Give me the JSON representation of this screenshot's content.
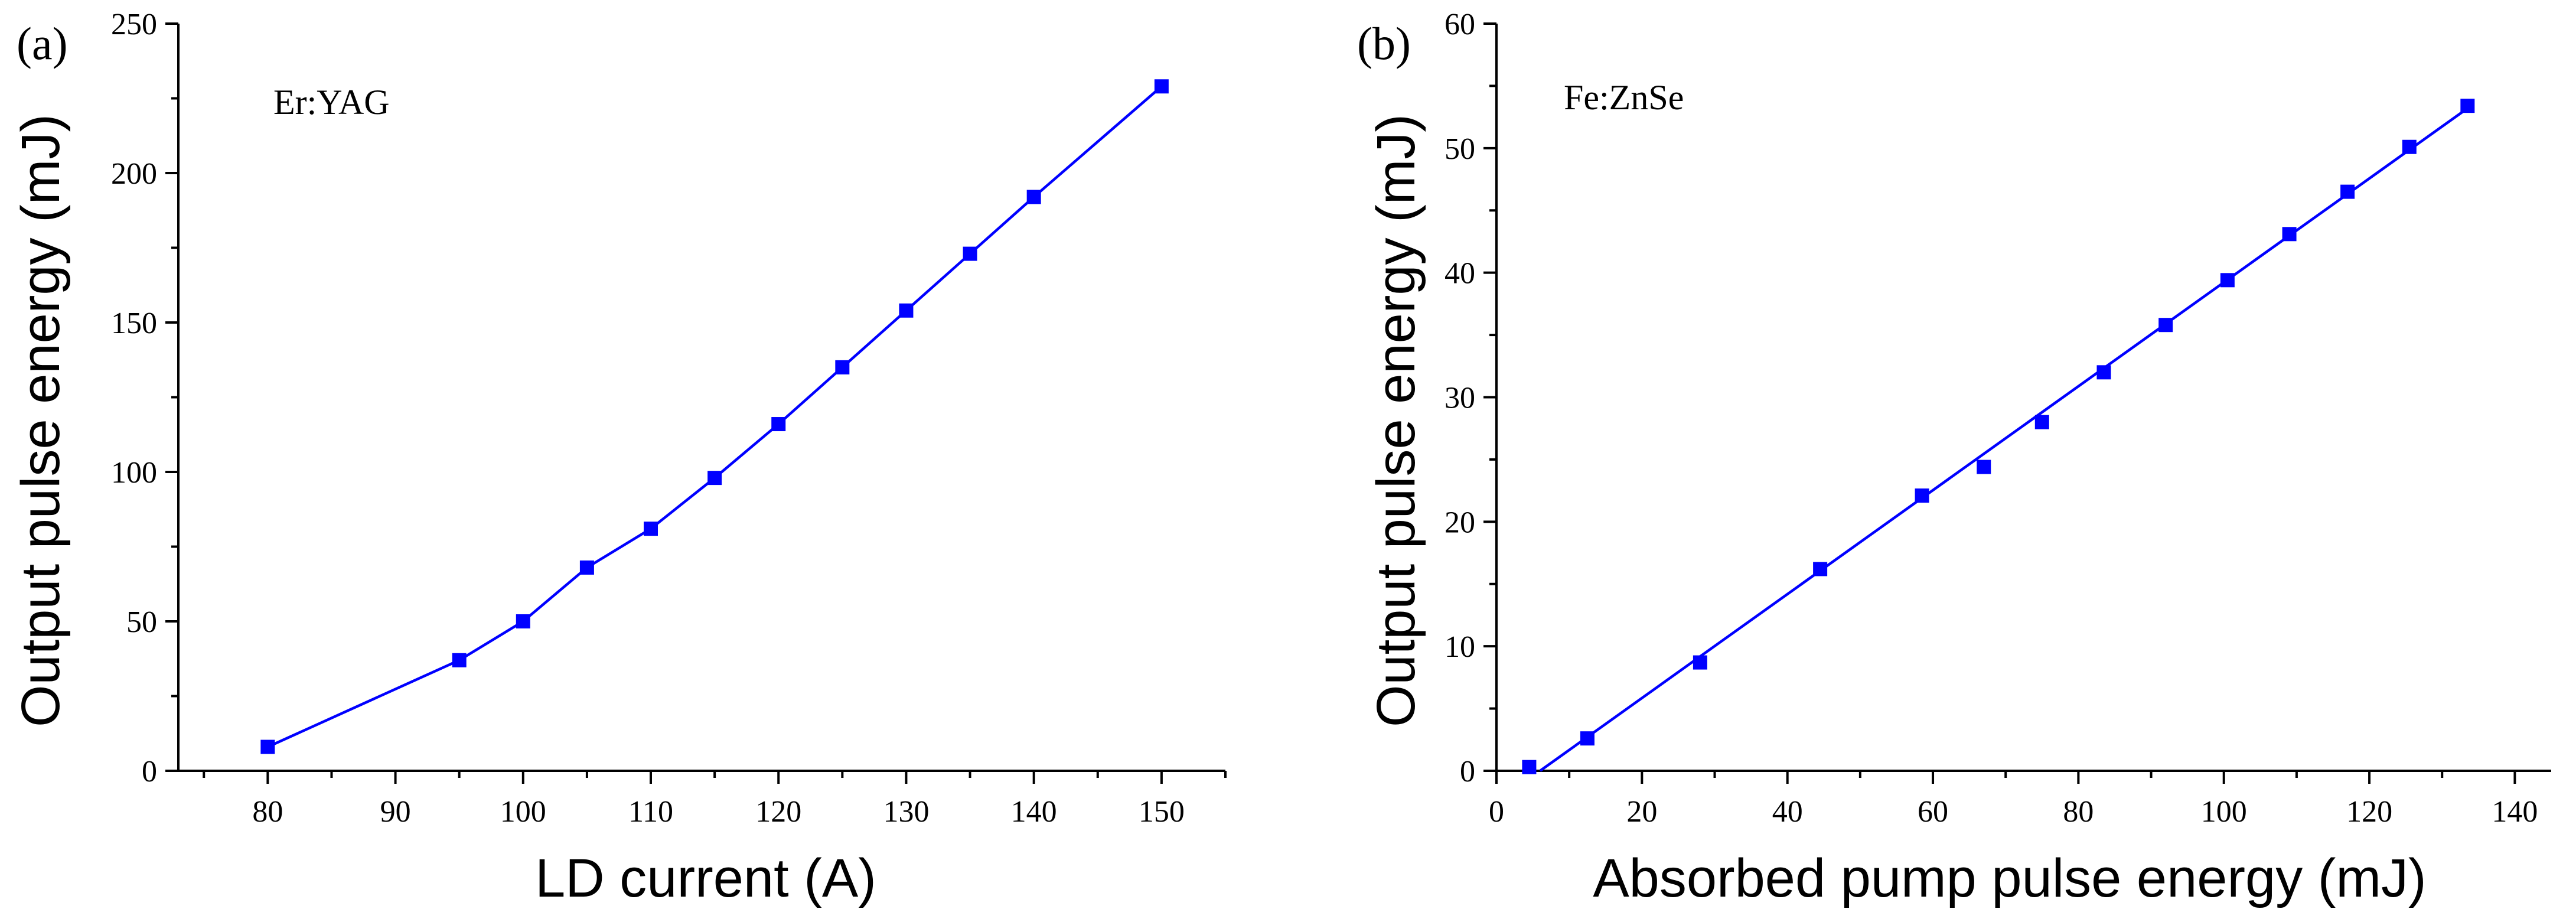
{
  "colors": {
    "series": "#0000ff",
    "axes": "#000000",
    "background": "#ffffff"
  },
  "chart_data": [
    {
      "type": "line",
      "panel_label": "(a)",
      "annotation": "Er:YAG",
      "title": "",
      "xlabel": "LD current (A)",
      "ylabel": "Output pulse energy (mJ)",
      "xlim": [
        73,
        155
      ],
      "ylim": [
        0,
        250
      ],
      "xticks": [
        80,
        90,
        100,
        110,
        120,
        130,
        140,
        150
      ],
      "yticks": [
        0,
        50,
        100,
        150,
        200,
        250
      ],
      "x_minor_step": 5,
      "y_minor_step": 25,
      "grid": false,
      "line_mode": "connect",
      "series": [
        {
          "name": "Er:YAG",
          "x": [
            80,
            95,
            100,
            105,
            110,
            115,
            120,
            125,
            130,
            135,
            140,
            150
          ],
          "y": [
            8,
            37,
            50,
            68,
            81,
            98,
            116,
            135,
            154,
            173,
            192,
            229
          ]
        }
      ]
    },
    {
      "type": "scatter",
      "panel_label": "(b)",
      "annotation": "Fe:ZnSe",
      "title": "",
      "xlabel": "Absorbed pump pulse energy (mJ)",
      "ylabel": "Output pulse energy (mJ)",
      "xlim": [
        0,
        145
      ],
      "ylim": [
        0,
        60
      ],
      "xticks": [
        0,
        20,
        40,
        60,
        80,
        100,
        120,
        140
      ],
      "yticks": [
        0,
        10,
        20,
        30,
        40,
        50,
        60
      ],
      "x_minor_step": 10,
      "y_minor_step": 5,
      "grid": false,
      "line_mode": "linear-fit",
      "fit": {
        "x_start": 6,
        "y_start": 0,
        "x_end": 133.5,
        "y_end": 53.2
      },
      "series": [
        {
          "name": "Fe:ZnSe",
          "x": [
            4.5,
            12.5,
            28,
            44.5,
            58.5,
            67,
            75,
            83.5,
            92,
            100.5,
            109,
            117,
            125.5,
            133.5
          ],
          "y": [
            0.3,
            2.6,
            8.7,
            16.2,
            22.1,
            24.4,
            28,
            32,
            35.8,
            39.4,
            43.1,
            46.5,
            50.1,
            53.4
          ]
        }
      ]
    }
  ]
}
